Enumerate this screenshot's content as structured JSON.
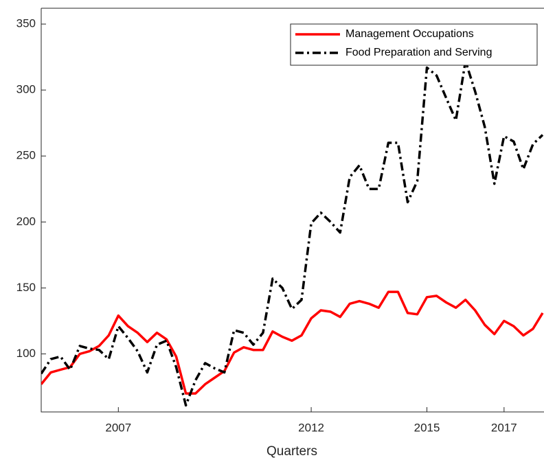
{
  "chart_data": {
    "type": "line",
    "xlabel": "Quarters",
    "categories": [
      null,
      null,
      null,
      null,
      null,
      null,
      null,
      null,
      "2007",
      null,
      null,
      null,
      null,
      null,
      null,
      null,
      null,
      null,
      null,
      null,
      null,
      null,
      null,
      null,
      null,
      null,
      null,
      null,
      "2012",
      null,
      null,
      null,
      null,
      null,
      null,
      null,
      null,
      null,
      null,
      null,
      "2015",
      null,
      null,
      null,
      null,
      null,
      null,
      null,
      "2017",
      null,
      null,
      null,
      null
    ],
    "xticklabel_positions": [],
    "series": [
      {
        "name": "Management Occupations",
        "color": "#ff0000",
        "values": [
          77,
          86,
          88,
          90,
          100,
          102,
          106,
          114,
          129,
          121,
          116,
          109,
          116,
          111,
          98,
          70,
          70,
          77,
          82,
          87,
          101,
          105,
          103,
          103,
          117,
          113,
          110,
          114,
          127,
          133,
          132,
          128,
          138,
          140,
          138,
          135,
          147,
          147,
          131,
          130,
          143,
          144,
          139,
          135,
          141,
          133,
          122,
          115,
          125,
          121,
          114,
          119,
          131
        ]
      },
      {
        "name": "Food Preparation and Serving",
        "color": "#000000",
        "values": [
          85,
          96,
          98,
          88,
          106,
          104,
          103,
          96,
          121,
          112,
          102,
          86,
          107,
          110,
          90,
          61,
          80,
          93,
          89,
          86,
          118,
          116,
          107,
          116,
          157,
          150,
          134,
          141,
          199,
          207,
          200,
          192,
          234,
          243,
          225,
          225,
          260,
          260,
          215,
          231,
          317,
          311,
          294,
          277,
          322,
          299,
          272,
          229,
          265,
          261,
          240,
          259,
          266
        ]
      }
    ],
    "ylim": [
      56,
      362
    ],
    "yticks": [
      100,
      150,
      200,
      250,
      300,
      350
    ],
    "grid": false,
    "legend": "top-right"
  }
}
